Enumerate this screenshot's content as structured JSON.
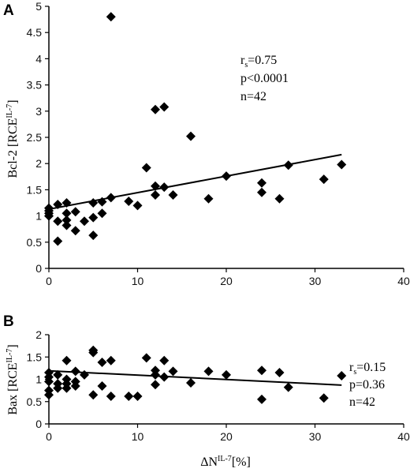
{
  "chart_data": [
    {
      "panel": "A",
      "type": "scatter",
      "ylabel_main": "Bcl-2 [RCE",
      "ylabel_sup": "IL-7",
      "ylabel_end": "]",
      "xlim": [
        0,
        40
      ],
      "ylim": [
        0,
        5
      ],
      "xticks": [
        0,
        10,
        20,
        30,
        40
      ],
      "yticks": [
        0,
        0.5,
        1,
        1.5,
        2,
        2.5,
        3,
        3.5,
        4,
        4.5,
        5
      ],
      "stats": {
        "rs_sub": "s",
        "rs_value": "=0.75",
        "p": "p<0.0001",
        "n": "n=42"
      },
      "trendline": {
        "x": [
          0,
          33
        ],
        "y": [
          1.13,
          2.17
        ]
      },
      "points": [
        {
          "x": 0,
          "y": 1.0
        },
        {
          "x": 0,
          "y": 1.05
        },
        {
          "x": 0,
          "y": 1.1
        },
        {
          "x": 0,
          "y": 1.15
        },
        {
          "x": 1,
          "y": 1.22
        },
        {
          "x": 1,
          "y": 0.9
        },
        {
          "x": 1,
          "y": 0.52
        },
        {
          "x": 2,
          "y": 1.25
        },
        {
          "x": 2,
          "y": 1.05
        },
        {
          "x": 2,
          "y": 0.92
        },
        {
          "x": 2,
          "y": 0.82
        },
        {
          "x": 3,
          "y": 1.08
        },
        {
          "x": 3,
          "y": 0.72
        },
        {
          "x": 4,
          "y": 0.9
        },
        {
          "x": 5,
          "y": 1.25
        },
        {
          "x": 5,
          "y": 0.97
        },
        {
          "x": 5,
          "y": 0.63
        },
        {
          "x": 6,
          "y": 1.27
        },
        {
          "x": 6,
          "y": 1.05
        },
        {
          "x": 7,
          "y": 1.35
        },
        {
          "x": 7,
          "y": 4.8
        },
        {
          "x": 9,
          "y": 1.28
        },
        {
          "x": 10,
          "y": 1.2
        },
        {
          "x": 11,
          "y": 1.92
        },
        {
          "x": 12,
          "y": 3.03
        },
        {
          "x": 12,
          "y": 1.57
        },
        {
          "x": 12,
          "y": 1.4
        },
        {
          "x": 13,
          "y": 3.08
        },
        {
          "x": 13,
          "y": 1.55
        },
        {
          "x": 14,
          "y": 1.4
        },
        {
          "x": 16,
          "y": 2.52
        },
        {
          "x": 18,
          "y": 1.33
        },
        {
          "x": 20,
          "y": 1.76
        },
        {
          "x": 24,
          "y": 1.63
        },
        {
          "x": 24,
          "y": 1.45
        },
        {
          "x": 26,
          "y": 1.33
        },
        {
          "x": 27,
          "y": 1.97
        },
        {
          "x": 31,
          "y": 1.7
        },
        {
          "x": 33,
          "y": 1.98
        }
      ]
    },
    {
      "panel": "B",
      "type": "scatter",
      "ylabel_main": "Bax [RCE",
      "ylabel_sup": "IL-7",
      "ylabel_end": "]",
      "xlabel_main": "ΔN",
      "xlabel_sup": "IL-7",
      "xlabel_end": "[%]",
      "xlim": [
        0,
        40
      ],
      "ylim": [
        0,
        2
      ],
      "xticks": [
        0,
        10,
        20,
        30,
        40
      ],
      "yticks": [
        0,
        0.5,
        1,
        1.5,
        2
      ],
      "stats": {
        "rs_sub": "s",
        "rs_value": "=0.15",
        "p": "p=0.36",
        "n": "n=42"
      },
      "trendline": {
        "x": [
          0,
          33
        ],
        "y": [
          1.19,
          0.87
        ]
      },
      "points": [
        {
          "x": 0,
          "y": 1.15
        },
        {
          "x": 0,
          "y": 1.05
        },
        {
          "x": 0,
          "y": 0.95
        },
        {
          "x": 0,
          "y": 0.75
        },
        {
          "x": 0,
          "y": 0.65
        },
        {
          "x": 1,
          "y": 1.1
        },
        {
          "x": 1,
          "y": 0.9
        },
        {
          "x": 1,
          "y": 0.8
        },
        {
          "x": 2,
          "y": 1.42
        },
        {
          "x": 2,
          "y": 1.0
        },
        {
          "x": 2,
          "y": 0.9
        },
        {
          "x": 2,
          "y": 0.8
        },
        {
          "x": 3,
          "y": 1.18
        },
        {
          "x": 3,
          "y": 0.95
        },
        {
          "x": 3,
          "y": 0.85
        },
        {
          "x": 4,
          "y": 1.1
        },
        {
          "x": 5,
          "y": 1.65
        },
        {
          "x": 5,
          "y": 1.6
        },
        {
          "x": 5,
          "y": 0.65
        },
        {
          "x": 6,
          "y": 1.38
        },
        {
          "x": 6,
          "y": 0.85
        },
        {
          "x": 7,
          "y": 1.42
        },
        {
          "x": 7,
          "y": 0.62
        },
        {
          "x": 9,
          "y": 0.62
        },
        {
          "x": 10,
          "y": 0.62
        },
        {
          "x": 11,
          "y": 1.48
        },
        {
          "x": 12,
          "y": 1.2
        },
        {
          "x": 12,
          "y": 1.1
        },
        {
          "x": 12,
          "y": 0.88
        },
        {
          "x": 13,
          "y": 1.42
        },
        {
          "x": 13,
          "y": 1.05
        },
        {
          "x": 14,
          "y": 1.18
        },
        {
          "x": 16,
          "y": 0.92
        },
        {
          "x": 18,
          "y": 1.18
        },
        {
          "x": 20,
          "y": 1.1
        },
        {
          "x": 24,
          "y": 1.2
        },
        {
          "x": 24,
          "y": 0.55
        },
        {
          "x": 26,
          "y": 1.15
        },
        {
          "x": 27,
          "y": 0.82
        },
        {
          "x": 31,
          "y": 0.58
        },
        {
          "x": 33,
          "y": 1.08
        }
      ]
    }
  ]
}
